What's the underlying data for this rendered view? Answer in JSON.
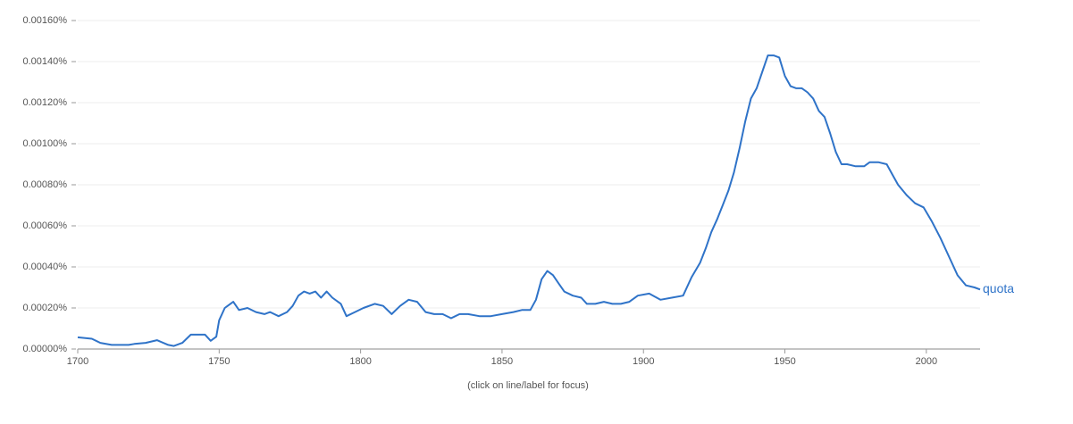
{
  "chart_data": {
    "type": "line",
    "note": "(click on line/label for focus)",
    "x": [
      1700,
      1705,
      1708,
      1712,
      1718,
      1720,
      1724,
      1728,
      1732,
      1734,
      1737,
      1740,
      1745,
      1747,
      1749,
      1750,
      1752,
      1755,
      1757,
      1760,
      1763,
      1766,
      1768,
      1771,
      1774,
      1776,
      1778,
      1780,
      1782,
      1784,
      1786,
      1788,
      1790,
      1793,
      1795,
      1798,
      1801,
      1805,
      1808,
      1811,
      1814,
      1817,
      1820,
      1823,
      1826,
      1829,
      1832,
      1835,
      1838,
      1842,
      1846,
      1850,
      1854,
      1857,
      1860,
      1862,
      1864,
      1866,
      1868,
      1870,
      1872,
      1875,
      1878,
      1880,
      1883,
      1886,
      1889,
      1892,
      1895,
      1898,
      1902,
      1906,
      1910,
      1914,
      1917,
      1920,
      1922,
      1924,
      1926,
      1928,
      1930,
      1932,
      1934,
      1936,
      1938,
      1940,
      1942,
      1944,
      1946,
      1948,
      1950,
      1952,
      1954,
      1956,
      1958,
      1960,
      1962,
      1964,
      1966,
      1968,
      1970,
      1972,
      1975,
      1978,
      1980,
      1983,
      1986,
      1988,
      1990,
      1993,
      1996,
      1999,
      2002,
      2005,
      2008,
      2011,
      2014,
      2017,
      2019
    ],
    "series": [
      {
        "name": "quota",
        "color": "#2f73c8",
        "values": [
          5.7e-05,
          5e-05,
          3e-05,
          2e-05,
          2e-05,
          2.5e-05,
          3e-05,
          4.3e-05,
          2e-05,
          1.5e-05,
          3e-05,
          7e-05,
          7e-05,
          4e-05,
          6e-05,
          0.00014,
          0.0002,
          0.00023,
          0.00019,
          0.0002,
          0.00018,
          0.00017,
          0.00018,
          0.00016,
          0.00018,
          0.00021,
          0.00026,
          0.00028,
          0.00027,
          0.00028,
          0.00025,
          0.00028,
          0.00025,
          0.00022,
          0.00016,
          0.00018,
          0.0002,
          0.00022,
          0.00021,
          0.00017,
          0.00021,
          0.00024,
          0.00023,
          0.00018,
          0.00017,
          0.00017,
          0.00015,
          0.00017,
          0.00017,
          0.00016,
          0.00016,
          0.00017,
          0.00018,
          0.00019,
          0.00019,
          0.00024,
          0.00034,
          0.00038,
          0.00036,
          0.00032,
          0.00028,
          0.00026,
          0.00025,
          0.00022,
          0.00022,
          0.00023,
          0.00022,
          0.00022,
          0.00023,
          0.00026,
          0.00027,
          0.00024,
          0.00025,
          0.00026,
          0.00035,
          0.00042,
          0.00049,
          0.00057,
          0.00063,
          0.0007,
          0.00077,
          0.00086,
          0.00098,
          0.00111,
          0.00122,
          0.00127,
          0.00135,
          0.00143,
          0.00143,
          0.00142,
          0.00133,
          0.00128,
          0.00127,
          0.00127,
          0.00125,
          0.00122,
          0.00116,
          0.00113,
          0.00105,
          0.00096,
          0.0009,
          0.0009,
          0.00089,
          0.00089,
          0.00091,
          0.00091,
          0.0009,
          0.00085,
          0.0008,
          0.00075,
          0.00071,
          0.00069,
          0.00062,
          0.00054,
          0.00045,
          0.00036,
          0.00031,
          0.0003,
          0.00029
        ]
      }
    ],
    "xlim": [
      1700,
      2019
    ],
    "xticks": [
      1700,
      1750,
      1800,
      1850,
      1900,
      1950,
      2000
    ],
    "ylim": [
      0,
      0.0016
    ],
    "yticks": [
      {
        "value": 0,
        "label": "0.00000%"
      },
      {
        "value": 0.0002,
        "label": "0.00020%"
      },
      {
        "value": 0.0004,
        "label": "0.00040%"
      },
      {
        "value": 0.0006,
        "label": "0.00060%"
      },
      {
        "value": 0.0008,
        "label": "0.00080%"
      },
      {
        "value": 0.001,
        "label": "0.00100%"
      },
      {
        "value": 0.0012,
        "label": "0.00120%"
      },
      {
        "value": 0.0014,
        "label": "0.00140%"
      },
      {
        "value": 0.0016,
        "label": "0.00160%"
      }
    ],
    "grid": true
  }
}
